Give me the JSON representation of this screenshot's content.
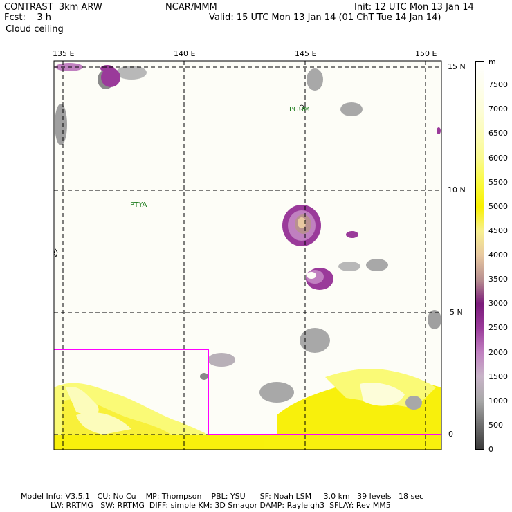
{
  "header": {
    "left_line1": "CONTRAST  3km ARW",
    "left_line2": "Fcst:    3 h",
    "left_line3": "Cloud ceiling",
    "center_line1": "NCAR/MMM",
    "right_line1": "Init: 12 UTC Mon 13 Jan 14",
    "right_line2": "Valid: 15 UTC Mon 13 Jan 14 (01 ChT Tue 14 Jan 14)"
  },
  "map": {
    "lon_labels": [
      "135 E",
      "140 E",
      "145 E",
      "150 E"
    ],
    "lat_labels": [
      "15 N",
      "10 N",
      "5 N",
      "0"
    ],
    "place_labels": {
      "pgum": "PGUM",
      "ptya": "PTYA"
    },
    "colors": {
      "background": "#fdfdf7",
      "gridline": "#000000",
      "domain_box": "#ff00ff",
      "place_label": "#1a7a1a"
    }
  },
  "colorbar": {
    "unit": "m",
    "labels": [
      "7500",
      "7000",
      "6500",
      "6000",
      "5500",
      "5000",
      "4500",
      "4000",
      "3500",
      "3000",
      "2500",
      "2000",
      "1500",
      "1000",
      "500",
      "0"
    ],
    "stops": [
      {
        "value": 0,
        "color": "#3a3a3a"
      },
      {
        "value": 500,
        "color": "#6e6e6e"
      },
      {
        "value": 1000,
        "color": "#a8a8a8"
      },
      {
        "value": 1500,
        "color": "#c8b4c8"
      },
      {
        "value": 2000,
        "color": "#c080c0"
      },
      {
        "value": 2500,
        "color": "#9a3a9a"
      },
      {
        "value": 3000,
        "color": "#7a1a7a"
      },
      {
        "value": 3500,
        "color": "#b89090"
      },
      {
        "value": 4000,
        "color": "#e8c8a0"
      },
      {
        "value": 4500,
        "color": "#f8f090"
      },
      {
        "value": 5000,
        "color": "#f8f000"
      },
      {
        "value": 5500,
        "color": "#fafa40"
      },
      {
        "value": 6000,
        "color": "#fafa90"
      },
      {
        "value": 6500,
        "color": "#fcfcb8"
      },
      {
        "value": 7000,
        "color": "#fdfdd8"
      },
      {
        "value": 7500,
        "color": "#fefeee"
      },
      {
        "value": 8000,
        "color": "#ffffff"
      }
    ]
  },
  "footer": {
    "line1": "Model Info: V3.5.1   CU: No Cu    MP: Thompson    PBL: YSU      SF: Noah LSM     3.0 km   39 levels   18 sec",
    "line2": "LW: RRTMG   SW: RRTMG  DIFF: simple KM: 3D Smagor DAMP: Rayleigh3  SFLAY: Rev MM5"
  }
}
